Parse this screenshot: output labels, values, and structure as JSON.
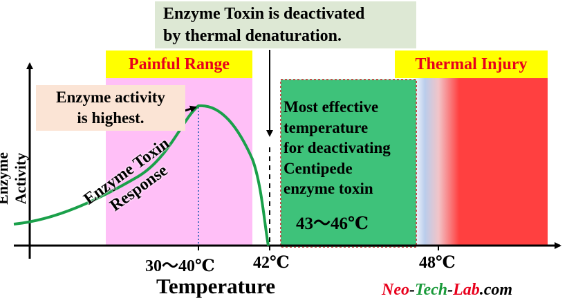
{
  "header_note": {
    "line1": "Enzyme Toxin is deactivated",
    "line2": "by thermal denaturation."
  },
  "zones": {
    "painful_label": "Painful Range",
    "injury_label": "Thermal Injury"
  },
  "callout": {
    "line1": "Enzyme activity",
    "line2": "is highest."
  },
  "effective_zone": {
    "lines": [
      "Most effective",
      "temperature",
      "for deactivating",
      "Centipede",
      "enzyme toxin"
    ],
    "range": "43～46℃"
  },
  "curve_label": {
    "line1": "Enzyme Toxin",
    "line2": "Response"
  },
  "axes": {
    "y_label": "Enzyme Activity",
    "x_label": "Temperature",
    "ticks": [
      "30～40℃",
      "42℃",
      "48℃"
    ]
  },
  "brand": {
    "part1": "Neo",
    "dash1": "-",
    "part2": "Tech",
    "dash2": "-",
    "part3": "Lab",
    "suffix": ".com"
  },
  "colors": {
    "painful_fill": "#ffbff7",
    "effective_fill": "#3ec27a",
    "injury_fill": "#ff4040",
    "label_bg": "#ffff00",
    "label_text": "#e8001c",
    "curve": "#1aa04a",
    "brand_red": "#e8001c",
    "brand_green": "#1a9a3a"
  }
}
